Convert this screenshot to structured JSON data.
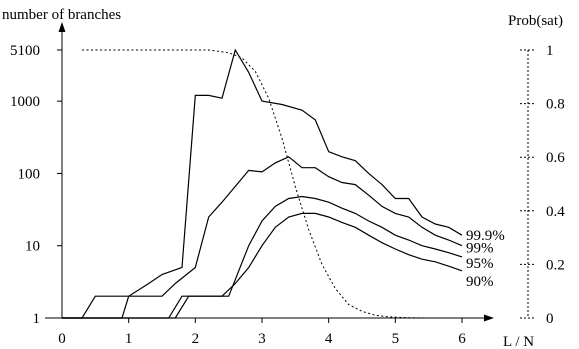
{
  "chart_data": {
    "type": "line",
    "ylabel": "number of branches",
    "y2label": "Prob(sat)",
    "xlabel": "L / N",
    "x_ticks": [
      "0",
      "1",
      "2",
      "3",
      "4",
      "5",
      "6"
    ],
    "y_ticks": [
      "1",
      "10",
      "100",
      "1000",
      "5100"
    ],
    "y2_ticks": [
      "0",
      "0.2",
      "0.4",
      "0.6",
      "0.8",
      "1"
    ],
    "xlim": [
      0,
      6
    ],
    "ylim": [
      1,
      5100
    ],
    "y_scale": "log",
    "y2lim": [
      0,
      1
    ],
    "series": [
      {
        "name": "99.9%",
        "x": [
          0,
          0.3,
          0.5,
          1.0,
          1.3,
          1.5,
          1.8,
          2.0,
          2.2,
          2.4,
          2.6,
          2.8,
          3.0,
          3.3,
          3.6,
          3.8,
          4.0,
          4.2,
          4.4,
          4.6,
          4.8,
          5.0,
          5.2,
          5.4,
          5.6,
          5.8,
          6.0
        ],
        "y": [
          1,
          1,
          2,
          2,
          3,
          4,
          5,
          1200,
          1200,
          1100,
          5100,
          2500,
          1000,
          900,
          750,
          550,
          200,
          170,
          150,
          100,
          70,
          45,
          45,
          25,
          20,
          18,
          14
        ]
      },
      {
        "name": "99%",
        "x": [
          0,
          0.9,
          1.0,
          1.5,
          1.7,
          2.0,
          2.2,
          2.4,
          2.8,
          3.0,
          3.2,
          3.4,
          3.6,
          3.8,
          4.0,
          4.2,
          4.4,
          4.6,
          4.8,
          5.0,
          5.2,
          5.4,
          5.6,
          5.8,
          6.0
        ],
        "y": [
          1,
          1,
          2,
          2,
          3,
          5,
          25,
          40,
          110,
          105,
          140,
          170,
          120,
          120,
          90,
          75,
          70,
          50,
          35,
          28,
          25,
          18,
          14,
          12,
          10
        ]
      },
      {
        "name": "95%",
        "x": [
          0,
          1.6,
          1.8,
          2.0,
          2.5,
          2.8,
          3.0,
          3.2,
          3.4,
          3.6,
          3.8,
          4.0,
          4.2,
          4.4,
          4.6,
          4.8,
          5.0,
          5.2,
          5.4,
          5.6,
          5.8,
          6.0
        ],
        "y": [
          1,
          1,
          2,
          2,
          2,
          10,
          22,
          35,
          45,
          48,
          45,
          40,
          33,
          28,
          22,
          18,
          14,
          12,
          10,
          9,
          8,
          7
        ]
      },
      {
        "name": "90%",
        "x": [
          0,
          1.7,
          1.9,
          2.4,
          2.6,
          2.8,
          3.0,
          3.2,
          3.4,
          3.6,
          3.8,
          4.0,
          4.2,
          4.4,
          4.6,
          4.8,
          5.0,
          5.2,
          5.4,
          5.6,
          5.8,
          6.0
        ],
        "y": [
          1,
          1,
          2,
          2,
          3,
          5,
          10,
          18,
          25,
          28,
          28,
          25,
          21,
          18,
          14,
          11,
          9,
          7.5,
          6.5,
          6,
          5.2,
          4.5
        ]
      }
    ],
    "prob_sat": {
      "x": [
        0.3,
        2.2,
        2.5,
        2.7,
        2.9,
        3.1,
        3.3,
        3.5,
        3.7,
        3.9,
        4.1,
        4.3,
        4.5,
        4.7,
        4.9,
        5.2,
        5.5,
        6.0
      ],
      "y": [
        1.0,
        1.0,
        0.99,
        0.97,
        0.92,
        0.82,
        0.67,
        0.49,
        0.33,
        0.2,
        0.11,
        0.05,
        0.025,
        0.01,
        0.004,
        0.001,
        0.0,
        0.0
      ]
    }
  }
}
